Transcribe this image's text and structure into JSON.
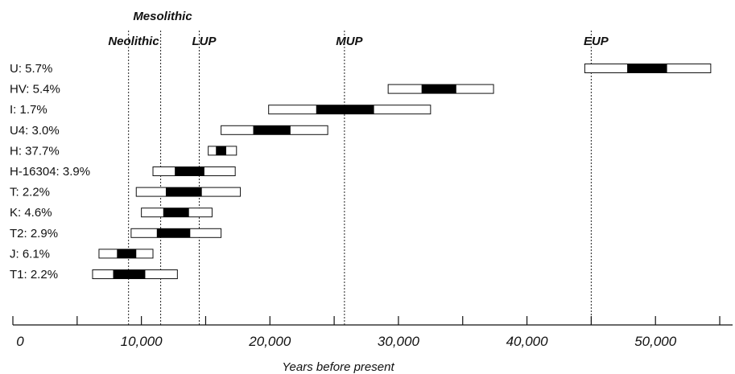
{
  "chart_data": {
    "type": "range-bar",
    "xlabel": "Years before present",
    "xlim": [
      0,
      56000
    ],
    "x_ticks": [
      {
        "value": 0,
        "label": "0"
      },
      {
        "value": 10000,
        "label": "10,000"
      },
      {
        "value": 20000,
        "label": "20,000"
      },
      {
        "value": 30000,
        "label": "30,000"
      },
      {
        "value": 40000,
        "label": "40,000"
      },
      {
        "value": 50000,
        "label": "50,000"
      }
    ],
    "minor_ticks": [
      5000,
      15000,
      25000,
      35000,
      45000,
      55000
    ],
    "periods": [
      {
        "name": "Mesolithic",
        "x": 11500
      },
      {
        "name": "Neolithic",
        "x": 9000
      },
      {
        "name": "LUP",
        "x": 14500
      },
      {
        "name": "MUP",
        "x": 25800
      },
      {
        "name": "EUP",
        "x": 45000
      }
    ],
    "rows": [
      {
        "label": "U: 5.7%",
        "range": [
          44500,
          54300
        ],
        "core": [
          47800,
          50900
        ]
      },
      {
        "label": "HV: 5.4%",
        "range": [
          29200,
          37400
        ],
        "core": [
          31800,
          34500
        ]
      },
      {
        "label": "I: 1.7%",
        "range": [
          19900,
          32500
        ],
        "core": [
          23600,
          28100
        ]
      },
      {
        "label": "U4: 3.0%",
        "range": [
          16200,
          24500
        ],
        "core": [
          18700,
          21600
        ]
      },
      {
        "label": "H: 37.7%",
        "range": [
          15200,
          17400
        ],
        "core": [
          15800,
          16600
        ]
      },
      {
        "label": "H-16304: 3.9%",
        "range": [
          10900,
          17300
        ],
        "core": [
          12600,
          14900
        ]
      },
      {
        "label": "T: 2.2%",
        "range": [
          9600,
          17700
        ],
        "core": [
          11900,
          14700
        ]
      },
      {
        "label": "K: 4.6%",
        "range": [
          10000,
          15500
        ],
        "core": [
          11700,
          13700
        ]
      },
      {
        "label": "T2: 2.9%",
        "range": [
          9200,
          16200
        ],
        "core": [
          11200,
          13800
        ]
      },
      {
        "label": "J: 6.1%",
        "range": [
          6700,
          10900
        ],
        "core": [
          8100,
          9600
        ]
      },
      {
        "label": "T1: 2.2%",
        "range": [
          6200,
          12800
        ],
        "core": [
          7800,
          10300
        ]
      }
    ]
  }
}
